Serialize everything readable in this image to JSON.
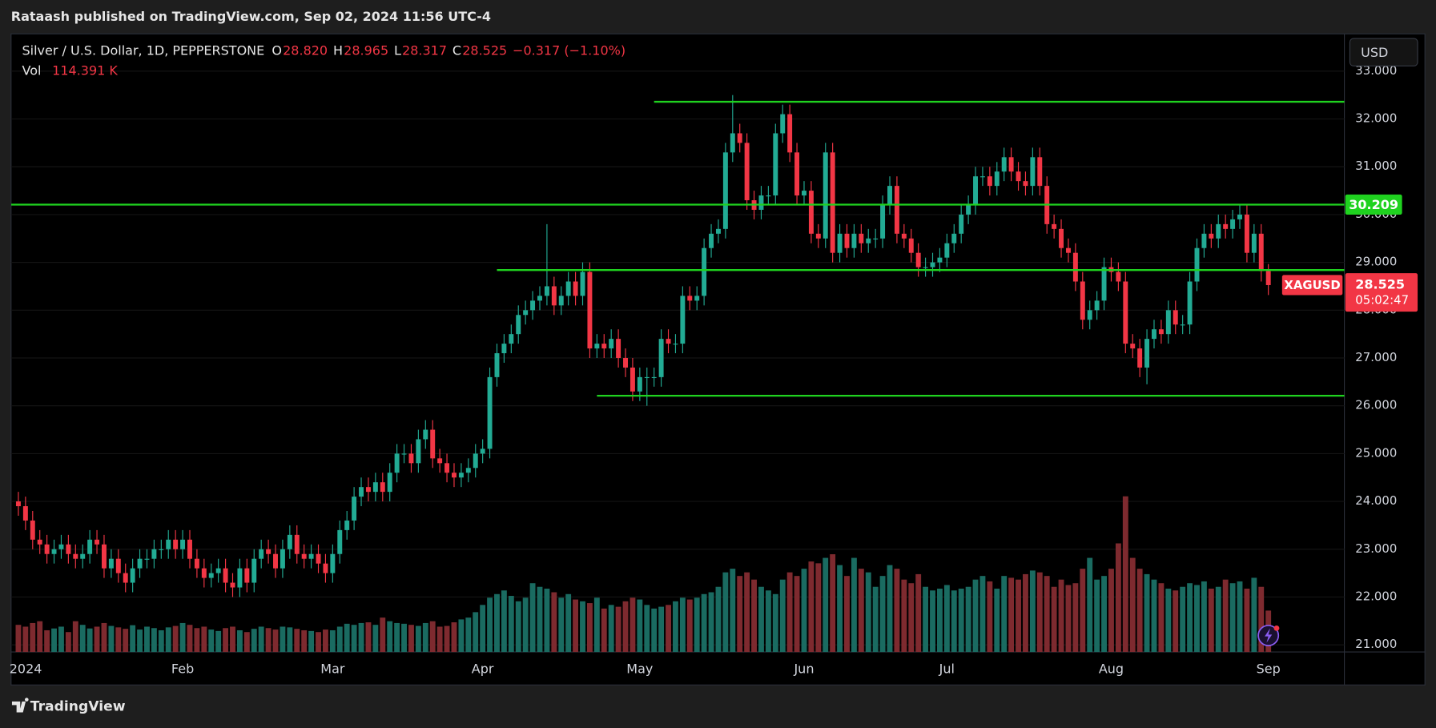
{
  "header": {
    "publisher": "Rataash published on TradingView.com, Sep 02, 2024 11:56 UTC-4"
  },
  "chart_data": {
    "type": "candlestick",
    "title": "Silver / U.S. Dollar, 1D, PEPPERSTONE",
    "ohlc_labels": [
      {
        "key": "O",
        "value": "28.820"
      },
      {
        "key": "H",
        "value": "28.965"
      },
      {
        "key": "L",
        "value": "28.317"
      },
      {
        "key": "C",
        "value": "28.525"
      }
    ],
    "change": "−0.317 (−1.10%)",
    "volume_title": "Vol",
    "volume_label": "114.391 K",
    "currency": "USD",
    "symbol": "XAGUSD",
    "countdown": "05:02:47",
    "up_color": "#22ab94",
    "down_color": "#f23645",
    "volume_up_color": "#1a6b61",
    "volume_down_color": "#7e2a2f",
    "level_color": "#1fd21f",
    "grid": true,
    "categories": [
      "2024",
      null,
      null,
      null,
      null,
      null,
      null,
      null,
      null,
      null,
      null,
      null,
      null,
      null,
      null,
      null,
      null,
      null,
      null,
      null,
      null,
      null,
      null,
      "Feb",
      null,
      null,
      null,
      null,
      null,
      null,
      null,
      null,
      null,
      null,
      null,
      null,
      null,
      null,
      null,
      null,
      null,
      null,
      null,
      null,
      "Mar",
      null,
      null,
      null,
      null,
      null,
      null,
      null,
      null,
      null,
      null,
      null,
      null,
      null,
      null,
      null,
      null,
      null,
      null,
      null,
      null,
      "Apr",
      null,
      null,
      null,
      null,
      null,
      null,
      null,
      null,
      null,
      null,
      null,
      null,
      null,
      null,
      null,
      null,
      null,
      null,
      null,
      null,
      null,
      "May",
      null,
      null,
      null,
      null,
      null,
      null,
      null,
      null,
      null,
      null,
      null,
      null,
      null,
      null,
      null,
      null,
      null,
      null,
      null,
      null,
      null,
      null,
      "Jun",
      null,
      null,
      null,
      null,
      null,
      null,
      null,
      null,
      null,
      null,
      null,
      null,
      null,
      null,
      null,
      null,
      null,
      null,
      null,
      "Jul",
      null,
      null,
      null,
      null,
      null,
      null,
      null,
      null,
      null,
      null,
      null,
      null,
      null,
      null,
      null,
      null,
      null,
      null,
      null,
      null,
      null,
      null,
      "Aug",
      null,
      null,
      null,
      null,
      null,
      null,
      null,
      null,
      null,
      null,
      null,
      null,
      null,
      null,
      null,
      null,
      null,
      null,
      null,
      null,
      null,
      "Sep"
    ],
    "open": [
      24.0,
      23.9,
      23.6,
      23.2,
      23.1,
      22.9,
      23.0,
      23.1,
      22.9,
      22.8,
      22.9,
      23.2,
      23.1,
      22.6,
      22.8,
      22.5,
      22.3,
      22.6,
      22.8,
      22.8,
      23.0,
      23.0,
      23.2,
      23.0,
      23.2,
      22.8,
      22.6,
      22.4,
      22.5,
      22.6,
      22.3,
      22.2,
      22.6,
      22.3,
      22.8,
      23.0,
      22.9,
      22.6,
      23.0,
      23.3,
      22.9,
      22.8,
      22.9,
      22.7,
      22.5,
      22.9,
      23.4,
      23.6,
      24.1,
      24.3,
      24.2,
      24.4,
      24.2,
      24.6,
      25.0,
      25.0,
      24.8,
      25.3,
      25.5,
      24.9,
      24.8,
      24.6,
      24.5,
      24.6,
      24.7,
      25.0,
      25.1,
      26.6,
      27.1,
      27.3,
      27.5,
      27.9,
      28.0,
      28.2,
      28.3,
      28.5,
      28.1,
      28.3,
      28.6,
      28.3,
      28.8,
      27.2,
      27.3,
      27.2,
      27.4,
      27.0,
      26.8,
      26.3,
      26.6,
      26.6,
      26.6,
      27.4,
      27.3,
      27.3,
      28.3,
      28.2,
      28.3,
      29.3,
      29.6,
      29.7,
      31.3,
      31.7,
      31.5,
      30.3,
      30.1,
      30.4,
      30.4,
      31.7,
      32.1,
      31.3,
      30.4,
      30.5,
      29.6,
      29.5,
      31.3,
      29.2,
      29.6,
      29.3,
      29.6,
      29.4,
      29.5,
      29.5,
      30.2,
      30.6,
      29.6,
      29.5,
      29.2,
      28.9,
      28.9,
      29.0,
      29.1,
      29.4,
      29.6,
      30.0,
      30.2,
      30.8,
      30.8,
      30.6,
      30.9,
      31.2,
      30.9,
      30.7,
      30.6,
      31.2,
      30.6,
      29.8,
      29.7,
      29.3,
      29.2,
      28.6,
      27.8,
      28.0,
      28.2,
      28.9,
      28.8,
      28.6,
      27.3,
      27.2,
      26.8,
      27.4,
      27.6,
      27.5,
      28.0,
      27.7,
      27.7,
      28.6,
      29.3,
      29.6,
      29.5,
      29.8,
      29.7,
      29.9,
      30.0,
      29.2,
      29.6,
      28.82
    ],
    "high": [
      24.2,
      24.1,
      23.8,
      23.4,
      23.3,
      23.2,
      23.3,
      23.3,
      23.1,
      23.1,
      23.4,
      23.4,
      23.3,
      23.0,
      23.0,
      22.7,
      22.8,
      23.0,
      23.0,
      23.2,
      23.2,
      23.4,
      23.4,
      23.4,
      23.4,
      23.0,
      22.8,
      22.7,
      22.8,
      22.8,
      22.5,
      22.8,
      22.8,
      23.0,
      23.2,
      23.2,
      23.1,
      23.2,
      23.5,
      23.5,
      23.1,
      23.1,
      23.1,
      22.9,
      23.1,
      23.6,
      23.8,
      24.3,
      24.5,
      24.5,
      24.6,
      24.6,
      24.8,
      25.2,
      25.2,
      25.2,
      25.5,
      25.7,
      25.7,
      25.1,
      25.0,
      24.8,
      24.8,
      24.9,
      25.2,
      25.3,
      26.8,
      27.3,
      27.5,
      27.7,
      28.1,
      28.2,
      28.4,
      28.5,
      29.8,
      28.7,
      28.5,
      28.8,
      28.8,
      29.0,
      29.0,
      27.5,
      27.5,
      27.6,
      27.6,
      27.2,
      27.0,
      26.8,
      26.8,
      26.8,
      27.6,
      27.6,
      27.5,
      28.5,
      28.5,
      28.5,
      29.5,
      29.8,
      29.9,
      31.5,
      32.5,
      31.9,
      31.7,
      30.5,
      30.6,
      30.6,
      31.9,
      32.3,
      32.3,
      31.5,
      30.7,
      30.7,
      29.8,
      31.5,
      31.5,
      29.8,
      29.8,
      29.8,
      29.8,
      29.7,
      29.7,
      30.4,
      30.8,
      30.8,
      29.8,
      29.7,
      29.4,
      29.1,
      29.2,
      29.3,
      29.6,
      29.8,
      30.2,
      30.4,
      31.0,
      31.0,
      31.0,
      31.1,
      31.4,
      31.4,
      31.1,
      30.9,
      31.4,
      31.4,
      30.8,
      30.0,
      29.9,
      29.5,
      29.4,
      28.8,
      28.2,
      28.4,
      29.1,
      29.1,
      29.0,
      28.8,
      27.5,
      27.4,
      27.6,
      27.8,
      27.8,
      28.2,
      28.2,
      27.9,
      28.8,
      29.5,
      29.8,
      29.8,
      30.0,
      30.0,
      30.1,
      30.2,
      30.2,
      29.8,
      29.8,
      28.965
    ],
    "low": [
      23.7,
      23.4,
      23.0,
      22.9,
      22.7,
      22.7,
      22.8,
      22.7,
      22.6,
      22.6,
      22.7,
      22.9,
      22.4,
      22.4,
      22.3,
      22.1,
      22.1,
      22.4,
      22.6,
      22.6,
      22.8,
      22.8,
      22.8,
      22.8,
      22.6,
      22.4,
      22.2,
      22.2,
      22.3,
      22.1,
      22.0,
      22.0,
      22.1,
      22.1,
      22.6,
      22.7,
      22.4,
      22.4,
      22.8,
      22.7,
      22.6,
      22.6,
      22.5,
      22.3,
      22.3,
      22.7,
      23.2,
      23.4,
      23.9,
      24.0,
      24.0,
      24.0,
      24.0,
      24.4,
      24.8,
      24.6,
      24.6,
      25.1,
      24.7,
      24.6,
      24.4,
      24.3,
      24.3,
      24.4,
      24.5,
      24.8,
      24.9,
      26.4,
      26.9,
      27.1,
      27.3,
      27.7,
      27.8,
      28.0,
      28.1,
      27.9,
      27.9,
      28.1,
      28.1,
      28.1,
      27.0,
      27.0,
      27.0,
      27.0,
      26.8,
      26.6,
      26.1,
      26.1,
      26.0,
      26.4,
      26.4,
      27.1,
      27.1,
      27.1,
      28.0,
      28.0,
      28.1,
      29.1,
      29.4,
      29.5,
      31.1,
      31.3,
      30.1,
      29.9,
      29.9,
      30.2,
      30.2,
      31.5,
      31.1,
      30.2,
      30.2,
      29.4,
      29.3,
      29.3,
      29.0,
      29.0,
      29.1,
      29.1,
      29.2,
      29.2,
      29.3,
      29.3,
      30.0,
      29.4,
      29.3,
      29.0,
      28.7,
      28.7,
      28.7,
      28.8,
      28.9,
      29.2,
      29.4,
      29.8,
      30.0,
      30.6,
      30.4,
      30.4,
      30.7,
      30.7,
      30.5,
      30.4,
      30.4,
      30.4,
      29.6,
      29.5,
      29.1,
      29.0,
      28.4,
      27.6,
      27.6,
      27.8,
      28.0,
      28.6,
      28.4,
      27.1,
      27.0,
      26.6,
      26.45,
      27.2,
      27.3,
      27.3,
      27.5,
      27.5,
      27.5,
      28.4,
      29.1,
      29.3,
      29.3,
      29.5,
      29.5,
      29.7,
      29.0,
      29.0,
      28.6,
      28.317
    ],
    "close": [
      23.9,
      23.6,
      23.2,
      23.1,
      22.9,
      23.0,
      23.1,
      22.9,
      22.8,
      22.9,
      23.2,
      23.1,
      22.6,
      22.8,
      22.5,
      22.3,
      22.6,
      22.8,
      22.8,
      23.0,
      23.0,
      23.2,
      23.0,
      23.2,
      22.8,
      22.6,
      22.4,
      22.5,
      22.6,
      22.3,
      22.2,
      22.6,
      22.3,
      22.8,
      23.0,
      22.9,
      22.6,
      23.0,
      23.3,
      22.9,
      22.8,
      22.9,
      22.7,
      22.5,
      22.9,
      23.4,
      23.6,
      24.1,
      24.3,
      24.2,
      24.4,
      24.2,
      24.6,
      25.0,
      25.0,
      24.8,
      25.3,
      25.5,
      24.9,
      24.8,
      24.6,
      24.5,
      24.6,
      24.7,
      25.0,
      25.1,
      26.6,
      27.1,
      27.3,
      27.5,
      27.9,
      28.0,
      28.2,
      28.3,
      28.5,
      28.1,
      28.3,
      28.6,
      28.3,
      28.8,
      27.2,
      27.3,
      27.2,
      27.4,
      27.0,
      26.8,
      26.3,
      26.6,
      26.6,
      26.6,
      27.4,
      27.3,
      27.3,
      28.3,
      28.2,
      28.3,
      29.3,
      29.6,
      29.7,
      31.3,
      31.7,
      31.5,
      30.3,
      30.1,
      30.4,
      30.4,
      31.7,
      32.1,
      31.3,
      30.4,
      30.5,
      29.6,
      29.5,
      31.3,
      29.2,
      29.6,
      29.3,
      29.6,
      29.4,
      29.5,
      29.5,
      30.2,
      30.6,
      29.6,
      29.5,
      29.2,
      28.9,
      28.9,
      29.0,
      29.1,
      29.4,
      29.6,
      30.0,
      30.2,
      30.8,
      30.8,
      30.6,
      30.9,
      31.2,
      30.9,
      30.7,
      30.6,
      31.2,
      30.6,
      29.8,
      29.7,
      29.3,
      29.2,
      28.6,
      27.8,
      28.0,
      28.2,
      28.9,
      28.8,
      28.6,
      27.3,
      27.2,
      26.8,
      27.4,
      27.6,
      27.5,
      28.0,
      27.7,
      27.7,
      28.6,
      29.3,
      29.6,
      29.5,
      29.8,
      29.7,
      29.9,
      30.0,
      29.2,
      29.6,
      28.82,
      28.525
    ],
    "volume": [
      75,
      70,
      80,
      85,
      60,
      65,
      70,
      55,
      85,
      75,
      65,
      70,
      80,
      72,
      68,
      64,
      74,
      62,
      70,
      66,
      60,
      68,
      72,
      80,
      75,
      66,
      70,
      62,
      58,
      66,
      70,
      60,
      55,
      64,
      70,
      66,
      62,
      70,
      68,
      64,
      60,
      58,
      55,
      62,
      60,
      70,
      78,
      75,
      80,
      82,
      75,
      95,
      85,
      80,
      78,
      75,
      72,
      80,
      85,
      70,
      72,
      82,
      90,
      95,
      110,
      130,
      150,
      160,
      170,
      155,
      140,
      150,
      190,
      180,
      175,
      165,
      150,
      160,
      145,
      140,
      135,
      150,
      120,
      130,
      125,
      140,
      150,
      145,
      130,
      120,
      125,
      130,
      140,
      150,
      145,
      150,
      160,
      165,
      180,
      220,
      230,
      210,
      220,
      200,
      180,
      170,
      160,
      200,
      220,
      210,
      230,
      250,
      245,
      260,
      270,
      240,
      210,
      260,
      230,
      220,
      180,
      210,
      240,
      230,
      200,
      190,
      215,
      180,
      170,
      175,
      185,
      170,
      175,
      180,
      200,
      210,
      195,
      175,
      210,
      205,
      200,
      215,
      225,
      220,
      210,
      180,
      200,
      185,
      190,
      230,
      260,
      200,
      210,
      230,
      300,
      430,
      260,
      230,
      215,
      200,
      190,
      175,
      170,
      180,
      190,
      185,
      195,
      175,
      180,
      200,
      190,
      195,
      175,
      205,
      180,
      114.391
    ],
    "levels": [
      {
        "value": 32.36,
        "start": 90
      },
      {
        "value": 30.209,
        "start": 0
      },
      {
        "value": 28.84,
        "start": 68
      },
      {
        "value": 26.21,
        "start": 82
      }
    ],
    "ylim": [
      20.85,
      33.78
    ],
    "yticks": [
      {
        "value": 21,
        "label": "21.000"
      },
      {
        "value": 22,
        "label": "22.000"
      },
      {
        "value": 23,
        "label": "23.000"
      },
      {
        "value": 24,
        "label": "24.000"
      },
      {
        "value": 25,
        "label": "25.000"
      },
      {
        "value": 26,
        "label": "26.000"
      },
      {
        "value": 27,
        "label": "27.000"
      },
      {
        "value": 28,
        "label": "28.000"
      },
      {
        "value": 29,
        "label": "29.000"
      },
      {
        "value": 30,
        "label": "30.000"
      },
      {
        "value": 31,
        "label": "31.000"
      },
      {
        "value": 32,
        "label": "32.000"
      },
      {
        "value": 33,
        "label": "33.000"
      }
    ]
  },
  "footer": {
    "brand": "TradingView"
  }
}
